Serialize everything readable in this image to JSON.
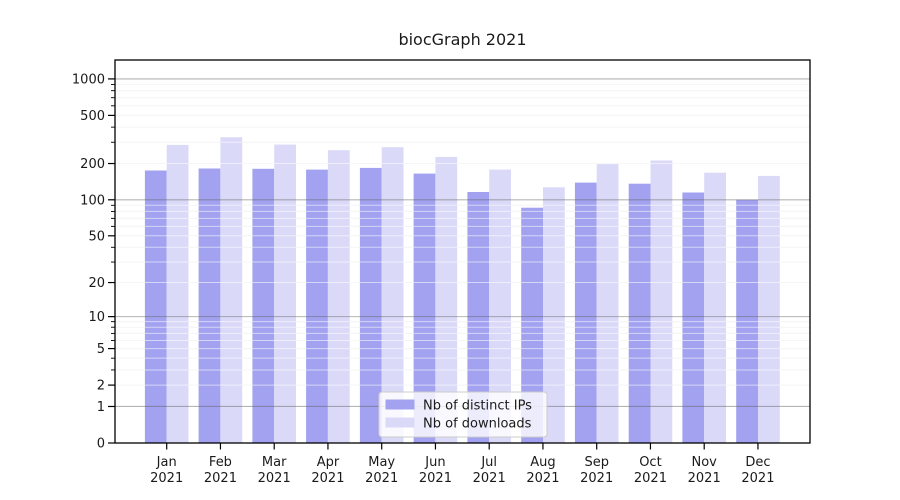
{
  "chart_data": {
    "type": "bar",
    "title": "biocGraph 2021",
    "categories": [
      {
        "line1": "Jan",
        "line2": "2021"
      },
      {
        "line1": "Feb",
        "line2": "2021"
      },
      {
        "line1": "Mar",
        "line2": "2021"
      },
      {
        "line1": "Apr",
        "line2": "2021"
      },
      {
        "line1": "May",
        "line2": "2021"
      },
      {
        "line1": "Jun",
        "line2": "2021"
      },
      {
        "line1": "Jul",
        "line2": "2021"
      },
      {
        "line1": "Aug",
        "line2": "2021"
      },
      {
        "line1": "Sep",
        "line2": "2021"
      },
      {
        "line1": "Oct",
        "line2": "2021"
      },
      {
        "line1": "Nov",
        "line2": "2021"
      },
      {
        "line1": "Dec",
        "line2": "2021"
      }
    ],
    "series": [
      {
        "name": "Nb of distinct IPs",
        "color": "#a2a2f0",
        "values": [
          175,
          182,
          181,
          178,
          184,
          165,
          116,
          86,
          139,
          136,
          115,
          100
        ]
      },
      {
        "name": "Nb of downloads",
        "color": "#dadaf8",
        "values": [
          285,
          330,
          287,
          258,
          273,
          227,
          178,
          127,
          198,
          212,
          168,
          158
        ]
      }
    ],
    "y_scale": "log10(1+x)",
    "y_ticks": [
      0,
      1,
      2,
      5,
      10,
      20,
      50,
      100,
      200,
      500,
      1000
    ],
    "ylim": [
      0,
      1460
    ],
    "xlabel": "",
    "ylabel": "",
    "grid": "on",
    "decade_gridline_values": [
      1,
      10,
      100,
      1000
    ],
    "minor_gridline_values": [
      2,
      3,
      4,
      5,
      6,
      7,
      8,
      9,
      20,
      30,
      40,
      50,
      60,
      70,
      80,
      90,
      200,
      300,
      400,
      500,
      600,
      700,
      800,
      900
    ],
    "legend_position": "lower center",
    "colors": {
      "axis": "#000000",
      "text": "#1a1a1a",
      "decade_gridline": "#9a9a9a",
      "minor_gridline": "#ececec",
      "legend_border": "#cccccc",
      "background": "#ffffff"
    }
  }
}
